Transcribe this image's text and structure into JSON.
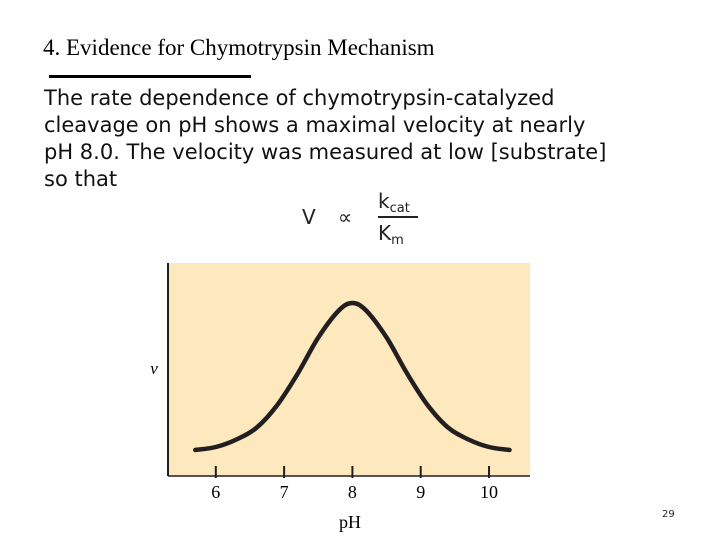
{
  "slide": {
    "title": "4. Evidence for Chymotrypsin Mechanism",
    "body_lines": [
      "The rate dependence of chymotrypsin-catalyzed",
      "cleavage on pH shows a maximal velocity at nearly",
      "pH 8.0. The velocity was measured at low [substrate]",
      "so that"
    ],
    "formula": {
      "lhs": "V",
      "relation": "∝",
      "numerator": "k",
      "numerator_sub": "cat",
      "denominator": "K",
      "denominator_sub": "m"
    },
    "page_number": "29"
  },
  "colors": {
    "plot_background": "#fde9bd",
    "curve": "#231f20"
  },
  "chart_data": {
    "type": "line",
    "xlabel": "pH",
    "ylabel": "v",
    "x_ticks": [
      6,
      7,
      8,
      9,
      10
    ],
    "tick_labels": [
      "6",
      "7",
      "8",
      "9",
      "10"
    ],
    "xlim": [
      5.3,
      10.6
    ],
    "ylim": [
      0,
      1
    ],
    "grid": false,
    "series": [
      {
        "x": [
          5.7,
          6.0,
          6.3,
          6.6,
          6.9,
          7.2,
          7.5,
          7.8,
          8.0,
          8.2,
          8.5,
          8.8,
          9.1,
          9.4,
          9.7,
          10.0,
          10.3
        ],
        "values": [
          0.02,
          0.04,
          0.09,
          0.17,
          0.32,
          0.53,
          0.77,
          0.95,
          1.0,
          0.95,
          0.77,
          0.53,
          0.32,
          0.17,
          0.09,
          0.04,
          0.02
        ]
      }
    ]
  }
}
